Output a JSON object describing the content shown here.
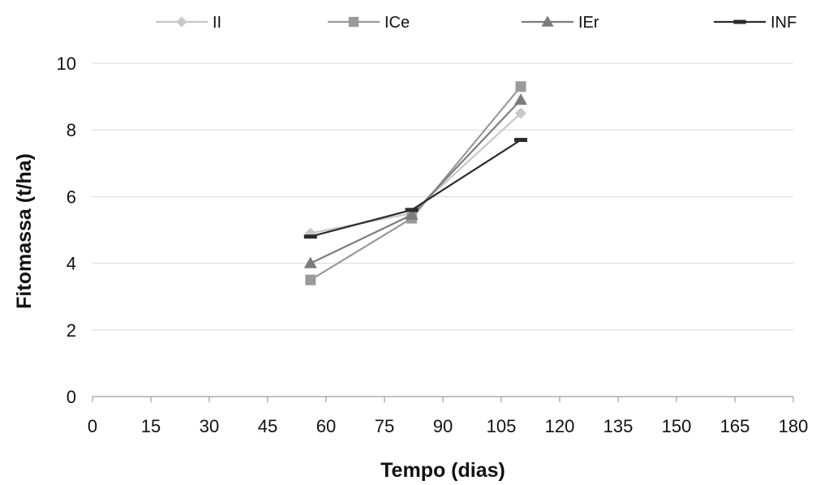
{
  "chart_data": {
    "type": "line",
    "title": "",
    "xlabel": "Tempo (dias)",
    "ylabel": "Fitomassa (t/ha)",
    "xlim": [
      0,
      180
    ],
    "ylim": [
      0,
      10
    ],
    "x_ticks": [
      "0",
      "15",
      "30",
      "45",
      "60",
      "75",
      "90",
      "105",
      "120",
      "135",
      "150",
      "165",
      "180"
    ],
    "y_ticks": [
      "0",
      "2",
      "4",
      "6",
      "8",
      "10"
    ],
    "grid": "horizontal",
    "legend_position": "top",
    "x": [
      56,
      82,
      110
    ],
    "series": [
      {
        "name": "II",
        "values": [
          4.9,
          5.5,
          8.5
        ],
        "color": "#c8c8c8",
        "marker": "diamond"
      },
      {
        "name": "ICe",
        "values": [
          3.5,
          5.35,
          9.3
        ],
        "color": "#9a9a9a",
        "marker": "square"
      },
      {
        "name": "IEr",
        "values": [
          4.0,
          5.45,
          8.9
        ],
        "color": "#7c7c7c",
        "marker": "triangle"
      },
      {
        "name": "INF",
        "values": [
          4.8,
          5.6,
          7.7
        ],
        "color": "#2b2b2b",
        "marker": "dash"
      }
    ]
  }
}
